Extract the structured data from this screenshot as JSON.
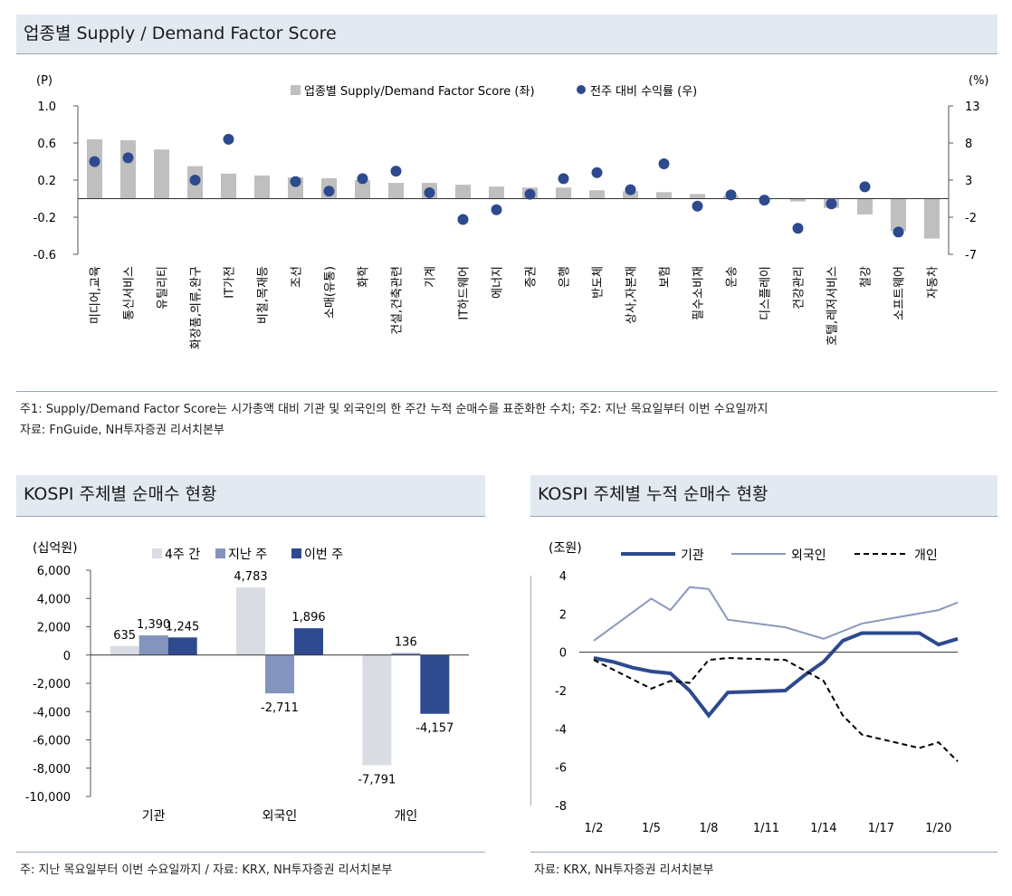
{
  "top": {
    "title": "업종별 Supply / Demand Factor Score",
    "note1": "주1: Supply/Demand Factor Score는 시가총액 대비 기관 및 외국인의 한 주간 누적 순매수를 표준화한 수치; 주2: 지난 목요일부터 이번 수요일까지",
    "note2": "자료: FnGuide, NH투자증권 리서치본부"
  },
  "bottom_left": {
    "title": "KOSPI 주체별 순매수 현황",
    "note": "주: 지난 목요일부터 이번 수요일까지 / 자료: KRX, NH투자증권 리서치본부"
  },
  "bottom_right": {
    "title": "KOSPI 주체별 누적 순매수 현황",
    "note": "자료: KRX, NH투자증권 리서치본부"
  },
  "colors": {
    "bar_gray": "#bfbfbf",
    "dot_navy": "#2e4a8e",
    "bar_light": "#d9dde3",
    "bar_mid": "#8495bd",
    "bar_dark": "#2e4a8e",
    "line_light": "#8a98bd",
    "line_black": "#000000"
  },
  "chart_data": [
    {
      "type": "bar",
      "left_unit": "(P)",
      "right_unit": "(%)",
      "ylim": [
        -0.6,
        1.0
      ],
      "yticks": [
        "1.0",
        "0.6",
        "0.2",
        "-0.2",
        "-0.6"
      ],
      "y2lim": [
        -7,
        13
      ],
      "y2ticks": [
        "13",
        "8",
        "3",
        "-2",
        "-7"
      ],
      "legend": [
        "업종별 Supply/Demand Factor Score (좌)",
        "전주 대비 수익률 (우)"
      ],
      "categories": [
        "미디어,교육",
        "통신서비스",
        "유틸리티",
        "화장품,의류,완구",
        "IT가전",
        "비철,목재등",
        "조선",
        "소매(유통)",
        "화학",
        "건설,건축관련",
        "기계",
        "IT하드웨어",
        "에너지",
        "증권",
        "은행",
        "반도체",
        "상사,자본재",
        "보험",
        "필수소비재",
        "운송",
        "디스플레이",
        "건강관리",
        "호텔,레저서비스",
        "철강",
        "소프트웨어",
        "자동차"
      ],
      "series": [
        {
          "name": "업종별 Supply/Demand Factor Score (좌)",
          "axis": "left",
          "values": [
            0.64,
            0.63,
            0.53,
            0.35,
            0.27,
            0.25,
            0.23,
            0.22,
            0.2,
            0.17,
            0.17,
            0.15,
            0.13,
            0.12,
            0.12,
            0.09,
            0.08,
            0.07,
            0.05,
            0.03,
            0.0,
            -0.03,
            -0.1,
            -0.17,
            -0.35,
            -0.43
          ]
        },
        {
          "name": "전주 대비 수익률 (우)",
          "axis": "right",
          "values": [
            5.5,
            6.0,
            null,
            3.0,
            8.5,
            null,
            2.8,
            1.5,
            3.2,
            4.2,
            1.3,
            -2.3,
            -1.0,
            1.1,
            3.2,
            4.0,
            1.7,
            5.2,
            -0.5,
            1.0,
            0.3,
            -3.5,
            -0.2,
            2.1,
            -4.0,
            null
          ]
        }
      ]
    },
    {
      "type": "bar",
      "unit": "(십억원)",
      "ylim": [
        -10000,
        6000
      ],
      "yticks": [
        "6,000",
        "4,000",
        "2,000",
        "0",
        "-2,000",
        "-4,000",
        "-6,000",
        "-8,000",
        "-10,000"
      ],
      "categories": [
        "기관",
        "외국인",
        "개인"
      ],
      "series": [
        {
          "name": "4주 간",
          "values": [
            635,
            4783,
            -7791
          ],
          "labels": [
            "635",
            "4,783",
            "-7,791"
          ]
        },
        {
          "name": "지난 주",
          "values": [
            1390,
            -2711,
            136
          ],
          "labels": [
            "1,390",
            "-2,711",
            "136"
          ]
        },
        {
          "name": "이번 주",
          "values": [
            1245,
            1896,
            -4157
          ],
          "labels": [
            "1,245",
            "1,896",
            "-4,157"
          ]
        }
      ]
    },
    {
      "type": "line",
      "unit": "(조원)",
      "ylim": [
        -8,
        4
      ],
      "yticks": [
        "4",
        "2",
        "0",
        "-2",
        "-4",
        "-6",
        "-8"
      ],
      "x_ticks": [
        "1/2",
        "1/5",
        "1/8",
        "1/11",
        "1/14",
        "1/17",
        "1/20"
      ],
      "x_tick_days": [
        2,
        5,
        8,
        11,
        14,
        17,
        20
      ],
      "x_range_days": [
        2,
        21
      ],
      "series": [
        {
          "name": "기관",
          "x_days": [
            2,
            3,
            4,
            5,
            6,
            7,
            8,
            9,
            12,
            13,
            14,
            15,
            16,
            19,
            20,
            21
          ],
          "values": [
            -0.3,
            -0.5,
            -0.8,
            -1.0,
            -1.1,
            -2.0,
            -3.3,
            -2.1,
            -2.0,
            -1.2,
            -0.5,
            0.6,
            1.0,
            1.0,
            0.4,
            0.7
          ]
        },
        {
          "name": "외국인",
          "x_days": [
            2,
            5,
            6,
            7,
            8,
            9,
            12,
            14,
            16,
            20,
            21
          ],
          "values": [
            0.6,
            2.8,
            2.2,
            3.4,
            3.3,
            1.7,
            1.3,
            0.7,
            1.5,
            2.2,
            2.6
          ]
        },
        {
          "name": "개인",
          "x_days": [
            2,
            5,
            6,
            7,
            8,
            9,
            12,
            14,
            15,
            16,
            19,
            20,
            21
          ],
          "values": [
            -0.4,
            -1.9,
            -1.5,
            -1.6,
            -0.4,
            -0.3,
            -0.4,
            -1.5,
            -3.3,
            -4.3,
            -5.0,
            -4.7,
            -5.7
          ]
        }
      ]
    }
  ]
}
